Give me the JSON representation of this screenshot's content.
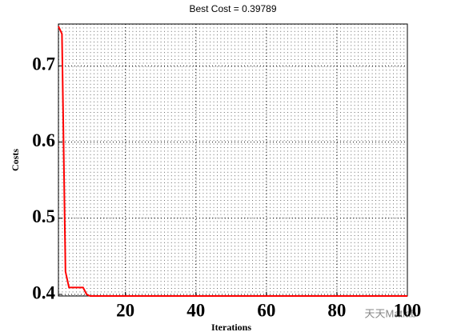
{
  "chart_data": {
    "type": "line",
    "title": "Best Cost = 0.39789",
    "x_label": "Iterations",
    "y_label": "Costs",
    "watermark": "天天Matlab",
    "x": [
      1,
      2,
      3,
      4,
      5,
      6,
      7,
      8,
      9,
      10,
      11,
      12,
      13,
      14,
      15,
      16,
      17,
      18,
      19,
      20,
      21,
      22,
      23,
      24,
      25,
      26,
      27,
      28,
      29,
      30,
      31,
      32,
      33,
      34,
      35,
      36,
      37,
      38,
      39,
      40,
      41,
      42,
      43,
      44,
      45,
      46,
      47,
      48,
      49,
      50,
      51,
      52,
      53,
      54,
      55,
      56,
      57,
      58,
      59,
      60,
      61,
      62,
      63,
      64,
      65,
      66,
      67,
      68,
      69,
      70,
      71,
      72,
      73,
      74,
      75,
      76,
      77,
      78,
      79,
      80,
      81,
      82,
      83,
      84,
      85,
      86,
      87,
      88,
      89,
      90,
      91,
      92,
      93,
      94,
      95,
      96,
      97,
      98,
      99,
      100
    ],
    "series": [
      {
        "name": "Best Cost",
        "color": "#ff0000",
        "values": [
          0.752,
          0.742,
          0.43,
          0.409,
          0.409,
          0.409,
          0.409,
          0.409,
          0.4,
          0.39789,
          0.39789,
          0.39789,
          0.39789,
          0.39789,
          0.39789,
          0.39789,
          0.39789,
          0.39789,
          0.39789,
          0.39789,
          0.39789,
          0.39789,
          0.39789,
          0.39789,
          0.39789,
          0.39789,
          0.39789,
          0.39789,
          0.39789,
          0.39789,
          0.39789,
          0.39789,
          0.39789,
          0.39789,
          0.39789,
          0.39789,
          0.39789,
          0.39789,
          0.39789,
          0.39789,
          0.39789,
          0.39789,
          0.39789,
          0.39789,
          0.39789,
          0.39789,
          0.39789,
          0.39789,
          0.39789,
          0.39789,
          0.39789,
          0.39789,
          0.39789,
          0.39789,
          0.39789,
          0.39789,
          0.39789,
          0.39789,
          0.39789,
          0.39789,
          0.39789,
          0.39789,
          0.39789,
          0.39789,
          0.39789,
          0.39789,
          0.39789,
          0.39789,
          0.39789,
          0.39789,
          0.39789,
          0.39789,
          0.39789,
          0.39789,
          0.39789,
          0.39789,
          0.39789,
          0.39789,
          0.39789,
          0.39789,
          0.39789,
          0.39789,
          0.39789,
          0.39789,
          0.39789,
          0.39789,
          0.39789,
          0.39789,
          0.39789,
          0.39789,
          0.39789,
          0.39789,
          0.39789,
          0.39789,
          0.39789,
          0.39789,
          0.39789,
          0.39789,
          0.39789,
          0.39789
        ]
      }
    ],
    "xlim": [
      1,
      100
    ],
    "ylim": [
      0.39789,
      0.755
    ],
    "xticks": [
      20,
      40,
      60,
      80,
      100
    ],
    "yticks": [
      0.4,
      0.5,
      0.6,
      0.7
    ],
    "grid": true
  }
}
